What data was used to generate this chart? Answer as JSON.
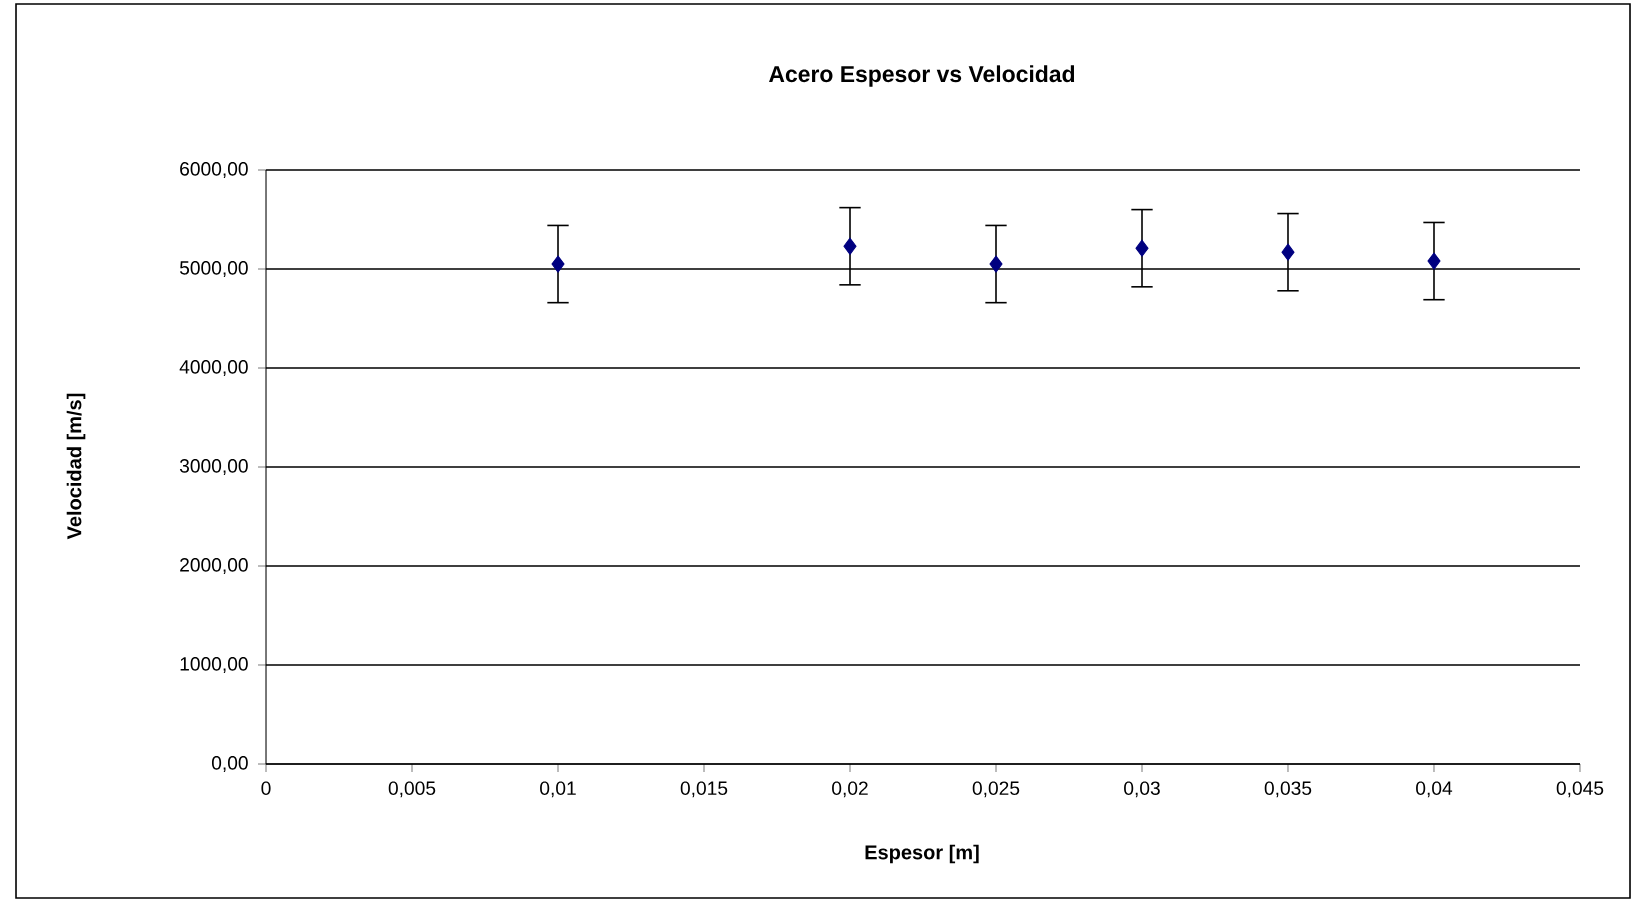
{
  "chart_data": {
    "type": "scatter",
    "title": "Acero Espesor vs Velocidad",
    "xlabel": "Espesor [m]",
    "ylabel": "Velocidad [m/s]",
    "x": [
      0.01,
      0.02,
      0.025,
      0.03,
      0.035,
      0.04
    ],
    "series": [
      {
        "color": "#000080",
        "values": [
          5050,
          5230,
          5050,
          5210,
          5170,
          5080
        ],
        "errors": [
          390,
          390,
          390,
          390,
          390,
          390
        ]
      }
    ],
    "marker": "diamond",
    "grid": "y",
    "xlim": [
      0,
      0.045
    ],
    "xticks": [
      0,
      {
        "value": 0.005,
        "label": "0,005"
      },
      {
        "value": 0.01,
        "label": "0,01"
      },
      {
        "value": 0.015,
        "label": "0,015"
      },
      {
        "value": 0.02,
        "label": "0,02"
      },
      {
        "value": 0.025,
        "label": "0,025"
      },
      {
        "value": 0.03,
        "label": "0,03"
      },
      {
        "value": 0.035,
        "label": "0,035"
      },
      {
        "value": 0.04,
        "label": "0,04"
      },
      {
        "value": 0.045,
        "label": "0,045"
      }
    ],
    "ylim": [
      0,
      6000
    ],
    "yticks": [
      {
        "value": 0,
        "label": "0,00"
      },
      {
        "value": 1000,
        "label": "1000,00"
      },
      {
        "value": 2000,
        "label": "2000,00"
      },
      {
        "value": 3000,
        "label": "3000,00"
      },
      {
        "value": 4000,
        "label": "4000,00"
      },
      {
        "value": 5000,
        "label": "5000,00"
      },
      {
        "value": 6000,
        "label": "6000,00"
      }
    ]
  }
}
